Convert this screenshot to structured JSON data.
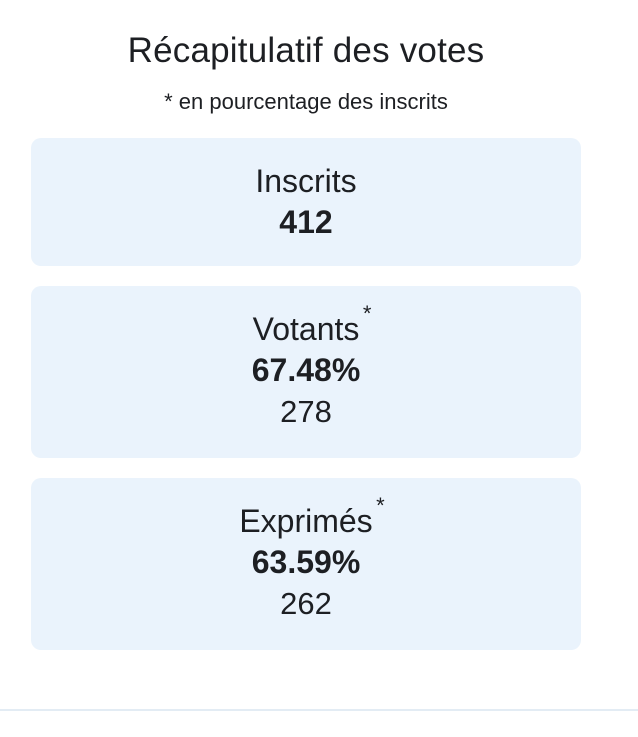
{
  "summary": {
    "title": "Récapitulatif des votes",
    "subtitle": "* en pourcentage des inscrits"
  },
  "cards": {
    "inscrits": {
      "label": "Inscrits",
      "value": "412"
    },
    "votants": {
      "label": "Votants",
      "asterisk": "*",
      "percent": "67.48%",
      "count": "278"
    },
    "exprimes": {
      "label": "Exprimés",
      "asterisk": "*",
      "percent": "63.59%",
      "count": "262"
    }
  },
  "colors": {
    "card_background": "#eaf3fc",
    "text": "#1d1f23",
    "divider": "#e3ecf4"
  }
}
